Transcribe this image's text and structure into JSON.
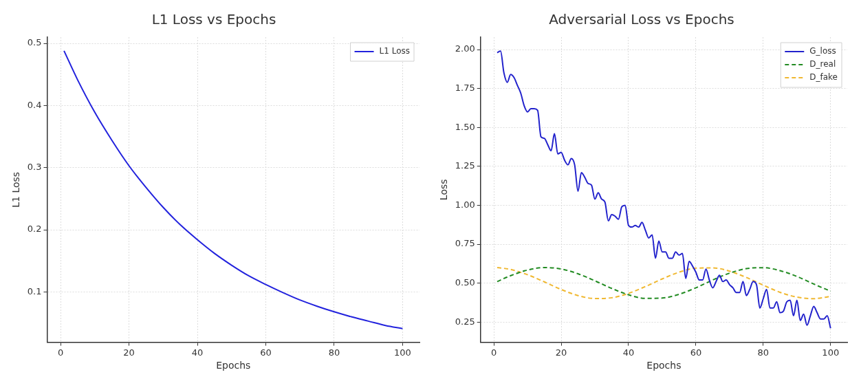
{
  "chart_data": [
    {
      "type": "line",
      "title": "L1 Loss vs Epochs",
      "xlabel": "Epochs",
      "ylabel": "L1 Loss",
      "legend": "top right",
      "grid": true,
      "line_style": "solid",
      "marker": "none",
      "x": [
        1,
        5,
        10,
        15,
        20,
        25,
        30,
        35,
        40,
        45,
        50,
        55,
        60,
        65,
        70,
        75,
        80,
        85,
        90,
        95,
        100
      ],
      "series": [
        {
          "name": "L1 Loss",
          "color": "#2222dd",
          "values": [
            0.488,
            0.441,
            0.389,
            0.344,
            0.303,
            0.268,
            0.236,
            0.208,
            0.184,
            0.162,
            0.143,
            0.126,
            0.112,
            0.099,
            0.087,
            0.077,
            0.068,
            0.06,
            0.053,
            0.046,
            0.041
          ]
        }
      ],
      "xlim": [
        -3.95,
        104.95
      ],
      "ylim": [
        0.019,
        0.51
      ],
      "xticks": [
        0,
        20,
        40,
        60,
        80,
        100
      ],
      "yticks": [
        0.1,
        0.2,
        0.3,
        0.4,
        0.5
      ]
    },
    {
      "type": "line",
      "title": "Adversarial Loss vs Epochs",
      "xlabel": "Epochs",
      "ylabel": "Loss",
      "legend": "top right",
      "grid": true,
      "marker": "none",
      "x": [
        1,
        2,
        3,
        4,
        5,
        6,
        7,
        8,
        9,
        10,
        11,
        12,
        13,
        14,
        15,
        16,
        17,
        18,
        19,
        20,
        21,
        22,
        23,
        24,
        25,
        26,
        27,
        28,
        29,
        30,
        31,
        32,
        33,
        34,
        35,
        36,
        37,
        38,
        39,
        40,
        41,
        42,
        43,
        44,
        45,
        46,
        47,
        48,
        49,
        50,
        51,
        52,
        53,
        54,
        55,
        56,
        57,
        58,
        59,
        60,
        61,
        62,
        63,
        64,
        65,
        66,
        67,
        68,
        69,
        70,
        71,
        72,
        73,
        74,
        75,
        76,
        77,
        78,
        79,
        80,
        81,
        82,
        83,
        84,
        85,
        86,
        87,
        88,
        89,
        90,
        91,
        92,
        93,
        94,
        95,
        96,
        97,
        98,
        99,
        100
      ],
      "series": [
        {
          "name": "G_loss",
          "color": "#2222cc",
          "line_style": "solid",
          "values": [
            1.98,
            1.99,
            1.85,
            1.79,
            1.84,
            1.82,
            1.77,
            1.72,
            1.64,
            1.6,
            1.62,
            1.62,
            1.61,
            1.44,
            1.43,
            1.39,
            1.35,
            1.46,
            1.33,
            1.34,
            1.29,
            1.26,
            1.3,
            1.26,
            1.09,
            1.21,
            1.18,
            1.14,
            1.13,
            1.04,
            1.08,
            1.04,
            1.02,
            0.9,
            0.94,
            0.93,
            0.91,
            0.99,
            1.0,
            0.87,
            0.86,
            0.87,
            0.86,
            0.89,
            0.84,
            0.79,
            0.81,
            0.66,
            0.77,
            0.7,
            0.7,
            0.66,
            0.66,
            0.7,
            0.68,
            0.69,
            0.53,
            0.64,
            0.61,
            0.57,
            0.52,
            0.52,
            0.59,
            0.52,
            0.47,
            0.51,
            0.55,
            0.51,
            0.52,
            0.49,
            0.47,
            0.44,
            0.44,
            0.51,
            0.42,
            0.46,
            0.51,
            0.49,
            0.34,
            0.4,
            0.46,
            0.34,
            0.34,
            0.38,
            0.31,
            0.32,
            0.38,
            0.39,
            0.29,
            0.39,
            0.26,
            0.3,
            0.23,
            0.29,
            0.35,
            0.31,
            0.27,
            0.27,
            0.29,
            0.21
          ]
        },
        {
          "name": "D_real",
          "color": "#228b22",
          "line_style": "dashed",
          "x": [
            1,
            5,
            10,
            15,
            20,
            25,
            30,
            35,
            40,
            45,
            50,
            55,
            60,
            65,
            70,
            75,
            80,
            85,
            90,
            95,
            100
          ],
          "values": [
            0.51,
            0.548,
            0.584,
            0.6,
            0.591,
            0.56,
            0.515,
            0.466,
            0.425,
            0.402,
            0.404,
            0.428,
            0.47,
            0.52,
            0.564,
            0.593,
            0.599,
            0.58,
            0.543,
            0.494,
            0.448
          ]
        },
        {
          "name": "D_fake",
          "color": "#f0b830",
          "line_style": "dashed",
          "x": [
            1,
            5,
            10,
            15,
            20,
            25,
            30,
            35,
            40,
            45,
            50,
            55,
            60,
            65,
            70,
            75,
            80,
            85,
            90,
            95,
            100
          ],
          "values": [
            0.6,
            0.588,
            0.554,
            0.508,
            0.459,
            0.42,
            0.401,
            0.406,
            0.434,
            0.478,
            0.527,
            0.57,
            0.596,
            0.598,
            0.577,
            0.536,
            0.487,
            0.441,
            0.41,
            0.4,
            0.415
          ]
        }
      ],
      "xlim": [
        -3.95,
        104.95
      ],
      "ylim": [
        0.12,
        2.08
      ],
      "xticks": [
        0,
        20,
        40,
        60,
        80,
        100
      ],
      "yticks": [
        0.25,
        {
          "value": 0.5,
          "label": "0.50"
        },
        0.75,
        {
          "value": 1,
          "label": "1.00"
        },
        1.25,
        {
          "value": 1.5,
          "label": "1.50"
        },
        1.75,
        {
          "value": 2,
          "label": "2.00"
        }
      ]
    }
  ]
}
